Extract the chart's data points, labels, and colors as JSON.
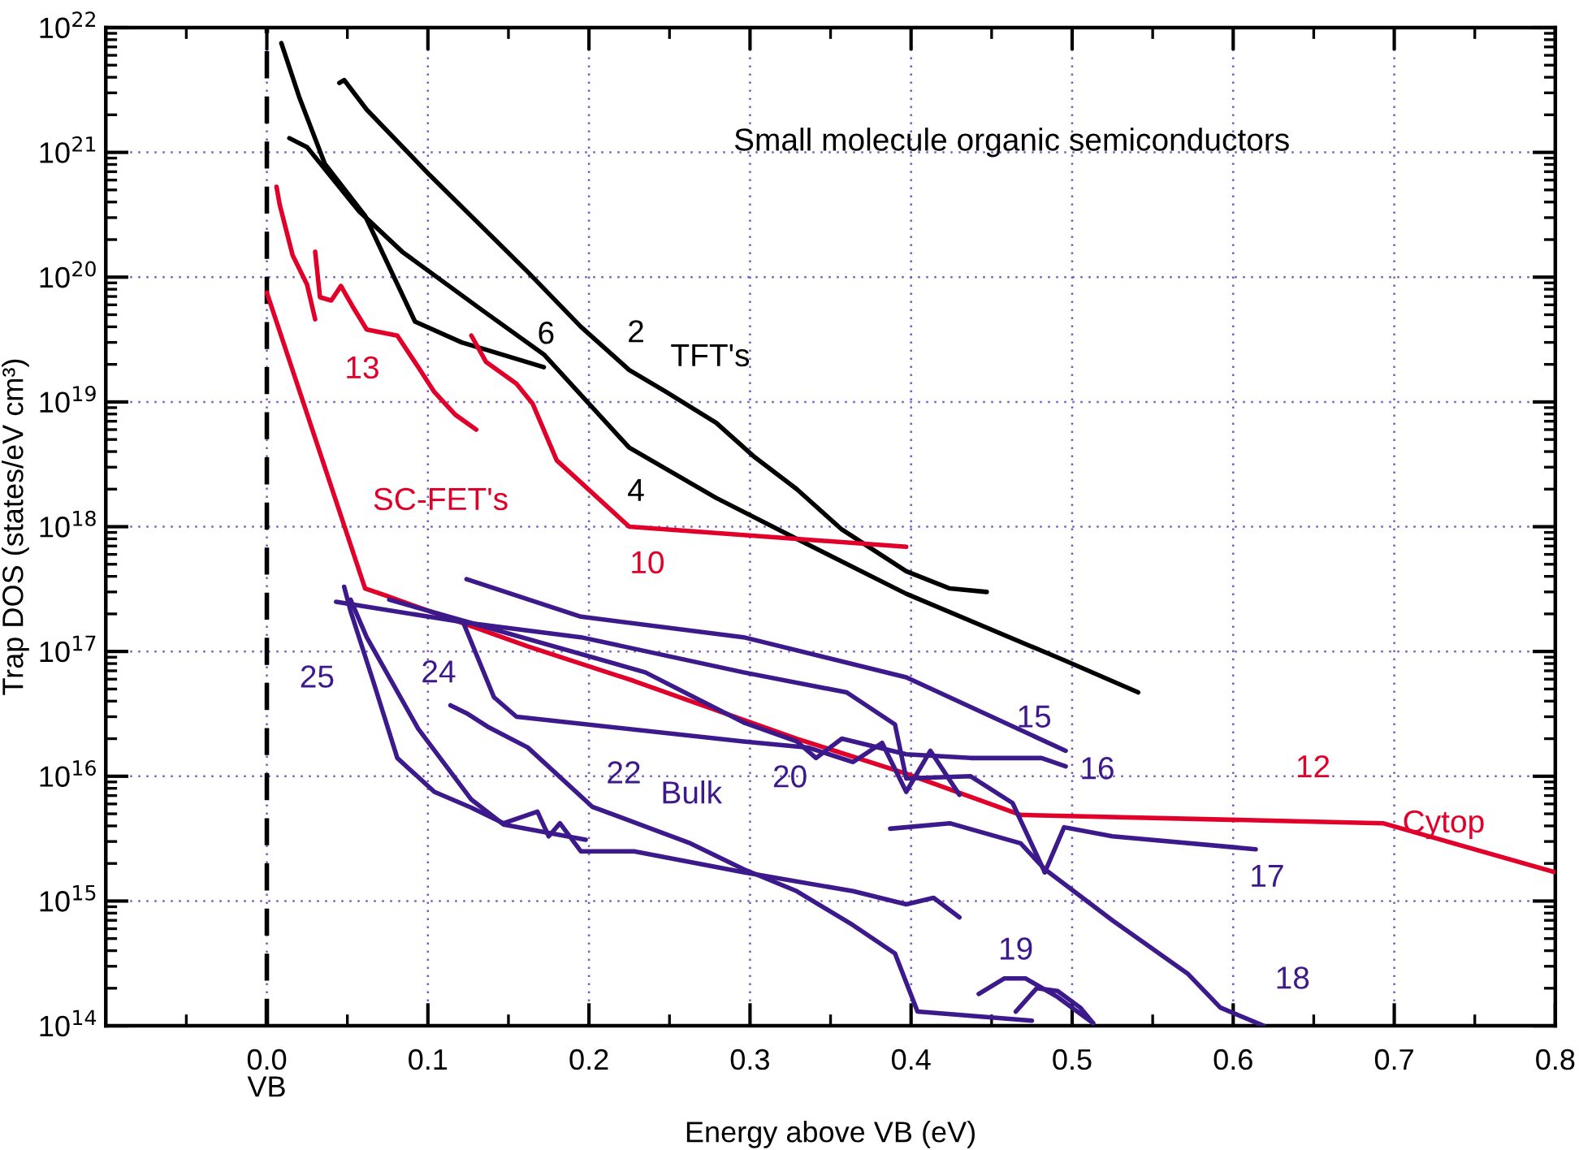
{
  "chart_data": {
    "type": "line",
    "xlabel": "Energy above VB (eV)",
    "ylabel": "Trap DOS (states/eV cm³)",
    "xlim": [
      -0.1,
      0.8
    ],
    "ylim": [
      100000000000000.0,
      1e+22
    ],
    "log": "y",
    "grid": true,
    "line_style": "solid",
    "xticks": [
      {
        "value": -0.1,
        "label": null
      },
      {
        "value": -0.05,
        "label": null
      },
      {
        "value": 0,
        "label": "0.0"
      },
      {
        "value": 0.05,
        "label": null
      },
      0.1,
      {
        "value": 0.15,
        "label": null
      },
      0.2,
      {
        "value": 0.25,
        "label": null
      },
      0.3,
      {
        "value": 0.35,
        "label": null
      },
      0.4,
      {
        "value": 0.45,
        "label": null
      },
      0.5,
      {
        "value": 0.55,
        "label": null
      },
      0.6,
      {
        "value": 0.65,
        "label": null
      },
      0.7,
      {
        "value": 0.75,
        "label": null
      },
      0.8
    ],
    "yticks": [
      {
        "value": 100000000000000.0,
        "label": "10$^{14}$"
      },
      {
        "value": 1000000000000000.0,
        "label": "10$^{15}$"
      },
      {
        "value": 1e+16,
        "label": "10$^{16}$"
      },
      {
        "value": 1e+17,
        "label": "10$^{17}$"
      },
      {
        "value": 1e+18,
        "label": "10$^{18}$"
      },
      {
        "value": 1e+19,
        "label": "10$^{19}$"
      },
      {
        "value": 1e+20,
        "label": "10$^{20}$"
      },
      {
        "value": 1e+21,
        "label": "10$^{21}$"
      },
      {
        "value": 1e+22,
        "label": "10$^{22}$"
      }
    ],
    "ref_lines": [
      {
        "axis": "x",
        "value": 0,
        "label": "VB",
        "color": "#000000",
        "line_style": "dashed"
      }
    ],
    "series": [
      {
        "name": "6",
        "color": "#000000",
        "x": [
          0.009,
          0.02,
          0.036,
          0.061,
          0.092,
          0.121,
          0.137,
          0.172
        ],
        "values": [
          7.5e+21,
          2.8e+21,
          8.1e+20,
          3.1e+20,
          4.4e+19,
          3e+19,
          2.6e+19,
          1.9e+19
        ]
      },
      {
        "name": "4",
        "color": "#000000",
        "x": [
          0.014,
          0.025,
          0.057,
          0.084,
          0.134,
          0.172,
          0.225,
          0.279,
          0.329,
          0.397,
          0.496,
          0.541
        ],
        "values": [
          1.3e+21,
          1.1e+21,
          3.4e+20,
          1.6e+20,
          5.4e+19,
          2.4e+19,
          4.3e+18,
          1.7e+18,
          8e+17,
          2.9e+17,
          8.4e+16,
          4.7e+16
        ]
      },
      {
        "name": "2",
        "color": "#000000",
        "x": [
          0.045,
          0.048,
          0.062,
          0.101,
          0.162,
          0.195,
          0.225,
          0.248,
          0.279,
          0.303,
          0.329,
          0.357,
          0.397,
          0.424,
          0.447
        ],
        "values": [
          3.6e+21,
          3.8e+21,
          2.2e+21,
          6.6e+20,
          1.1e+20,
          4e+19,
          1.8e+19,
          1.2e+19,
          6.8e+18,
          3.6e+18,
          2e+18,
          9.5e+17,
          4.4e+17,
          3.2e+17,
          3e+17
        ]
      },
      {
        "color": "#e0002a",
        "x": [
          0.006,
          0.008,
          0.016,
          0.025,
          0.03
        ],
        "values": [
          5.3e+20,
          3.8e+20,
          1.5e+20,
          8.7e+19,
          4.6e+19
        ]
      },
      {
        "name": "13",
        "color": "#e0002a",
        "x": [
          0.03,
          0.033,
          0.04,
          0.046,
          0.053,
          0.062,
          0.081,
          0.094,
          0.104,
          0.117,
          0.13
        ],
        "values": [
          1.6e+20,
          6.9e+19,
          6.5e+19,
          8.5e+19,
          5.9e+19,
          3.8e+19,
          3.4e+19,
          1.9e+19,
          1.2e+19,
          7.9e+18,
          6e+18
        ]
      },
      {
        "name": "10",
        "color": "#e0002a",
        "x": [
          0.127,
          0.136,
          0.155,
          0.165,
          0.18,
          0.225,
          0.397
        ],
        "values": [
          3.4e+19,
          2.1e+19,
          1.4e+19,
          9.7e+18,
          3.4e+18,
          1e+18,
          6.9e+17
        ]
      },
      {
        "name": "12",
        "color": "#e0002a",
        "x": [
          0.0,
          0.061,
          0.074,
          0.162,
          0.228,
          0.329,
          0.397,
          0.468,
          0.693,
          0.8
        ],
        "values": [
          7.5e+19,
          3.2e+17,
          2.8e+17,
          1.1e+17,
          5.8e+16,
          2e+16,
          1.05e+16,
          4900000000000000.0,
          4200000000000000.0,
          1700000000000000.0
        ]
      },
      {
        "name": "15",
        "color": "#3d1a8c",
        "x": [
          0.124,
          0.195,
          0.296,
          0.397,
          0.496
        ],
        "values": [
          3.8e+17,
          1.9e+17,
          1.3e+17,
          6.2e+16,
          1.6e+16
        ]
      },
      {
        "color": "#3d1a8c",
        "x": [
          0.043,
          0.124,
          0.195,
          0.296,
          0.36,
          0.39,
          0.397,
          0.437,
          0.463,
          0.483
        ],
        "values": [
          2.5e+17,
          1.7e+17,
          1.3e+17,
          6.8e+16,
          4.7e+16,
          2.6e+16,
          9600000000000000.0,
          1e+16,
          6100000000000000.0,
          1700000000000000.0
        ]
      },
      {
        "name": "16",
        "color": "#3d1a8c",
        "x": [
          0.076,
          0.235,
          0.296,
          0.329,
          0.341,
          0.357,
          0.397,
          0.437,
          0.481,
          0.496
        ],
        "values": [
          2.6e+17,
          6.8e+16,
          2.7e+16,
          1.9e+16,
          1.4e+16,
          2e+16,
          1.5e+16,
          1.4e+16,
          1.4e+16,
          1.2e+16
        ]
      },
      {
        "name": "20",
        "color": "#3d1a8c",
        "x": [
          0.122,
          0.141,
          0.155,
          0.296,
          0.336,
          0.364,
          0.382,
          0.397,
          0.412,
          0.43
        ],
        "values": [
          1.7e+17,
          4.3e+16,
          3e+16,
          1.9e+16,
          1.7e+16,
          1.3e+16,
          1.85e+16,
          7500000000000000.0,
          1.6e+16,
          7100000000000000.0
        ]
      },
      {
        "name": "18",
        "color": "#3d1a8c",
        "x": [
          0.387,
          0.424,
          0.468,
          0.483,
          0.525,
          0.572,
          0.592,
          0.619
        ],
        "values": [
          3800000000000000.0,
          4200000000000000.0,
          2900000000000000.0,
          1800000000000000.0,
          700000000000000.0,
          260000000000000.0,
          140000000000000.0,
          100000000000000.0
        ]
      },
      {
        "name": "17",
        "color": "#3d1a8c",
        "x": [
          0.483,
          0.495,
          0.525,
          0.614
        ],
        "values": [
          1700000000000000.0,
          3900000000000000.0,
          3300000000000000.0,
          2600000000000000.0
        ]
      },
      {
        "name": "25",
        "color": "#3d1a8c",
        "x": [
          0.048,
          0.052,
          0.066,
          0.081,
          0.104,
          0.127,
          0.147,
          0.168,
          0.175,
          0.182,
          0.195,
          0.228,
          0.296,
          0.364,
          0.397,
          0.414,
          0.43
        ],
        "values": [
          3.3e+17,
          2.1e+17,
          5.8e+16,
          1.4e+16,
          7500000000000000.0,
          5600000000000000.0,
          4200000000000000.0,
          5200000000000000.0,
          3300000000000000.0,
          4200000000000000.0,
          2500000000000000.0,
          2500000000000000.0,
          1700000000000000.0,
          1200000000000000.0,
          940000000000000.0,
          1060000000000000.0,
          740000000000000.0
        ]
      },
      {
        "name": "24",
        "color": "#3d1a8c",
        "x": [
          0.052,
          0.062,
          0.094,
          0.127,
          0.147,
          0.198
        ],
        "values": [
          2.6e+17,
          1.3e+17,
          2.4e+16,
          6500000000000000.0,
          4100000000000000.0,
          3100000000000000.0
        ]
      },
      {
        "name": "22",
        "color": "#3d1a8c",
        "x": [
          0.114,
          0.124,
          0.137,
          0.162,
          0.202,
          0.263,
          0.296,
          0.329,
          0.364,
          0.39,
          0.404,
          0.475
        ],
        "values": [
          3.7e+16,
          3.2e+16,
          2.5e+16,
          1.7e+16,
          5700000000000000.0,
          2900000000000000.0,
          1800000000000000.0,
          1200000000000000.0,
          640000000000000.0,
          380000000000000.0,
          130000000000000.0,
          110000000000000.0
        ]
      },
      {
        "name": "19",
        "color": "#3d1a8c",
        "x": [
          0.442,
          0.458,
          0.471,
          0.491,
          0.513
        ],
        "values": [
          180000000000000.0,
          240000000000000.0,
          240000000000000.0,
          170000000000000.0,
          105000000000000.0
        ]
      },
      {
        "color": "#3d1a8c",
        "x": [
          0.465,
          0.478,
          0.491,
          0.505,
          0.513
        ],
        "values": [
          130000000000000.0,
          200000000000000.0,
          190000000000000.0,
          140000000000000.0,
          105000000000000.0
        ]
      }
    ],
    "annotations": [
      "Small molecule organic semiconductors",
      "TFT's",
      "SC-FET's",
      "Cytop",
      "Bulk"
    ]
  }
}
